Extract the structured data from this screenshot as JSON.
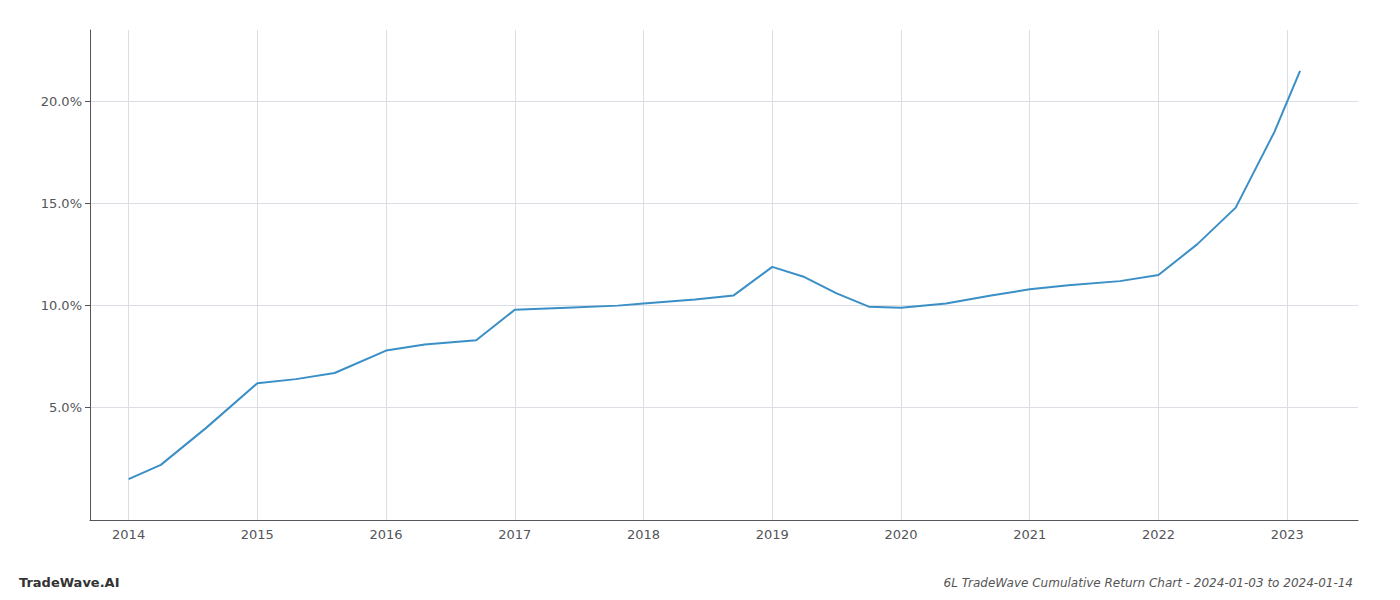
{
  "chart_data": {
    "type": "line",
    "title": "6L TradeWave Cumulative Return Chart - 2024-01-03 to 2024-01-14",
    "annotations": [
      "TradeWave.AI"
    ],
    "x": [
      2014.0,
      2014.25,
      2014.6,
      2015.0,
      2015.3,
      2015.6,
      2016.0,
      2016.3,
      2016.7,
      2017.0,
      2017.4,
      2017.8,
      2018.0,
      2018.4,
      2018.7,
      2019.0,
      2019.25,
      2019.5,
      2019.75,
      2020.0,
      2020.35,
      2020.7,
      2021.0,
      2021.3,
      2021.7,
      2022.0,
      2022.3,
      2022.6,
      2022.9,
      2023.1
    ],
    "values": [
      1.5,
      2.2,
      4.0,
      6.2,
      6.4,
      6.7,
      7.8,
      8.1,
      8.3,
      9.8,
      9.9,
      10.0,
      10.1,
      10.3,
      10.5,
      11.9,
      11.4,
      10.6,
      9.95,
      9.9,
      10.1,
      10.5,
      10.8,
      11.0,
      11.2,
      11.5,
      13.0,
      14.8,
      18.5,
      21.5
    ],
    "color": "#3a8fc7",
    "xlim": [
      2013.7,
      2023.55
    ],
    "ylim": [
      -0.5,
      23.5
    ],
    "xticks": [
      2014,
      2015,
      2016,
      2017,
      2018,
      2019,
      2020,
      2021,
      2022,
      2023
    ],
    "yticks": [
      {
        "value": 5.0,
        "label": "5.0%"
      },
      {
        "value": 10.0,
        "label": "10.0%"
      },
      {
        "value": 15.0,
        "label": "15.0%"
      },
      {
        "value": 20.0,
        "label": "20.0%"
      }
    ],
    "grid": true
  }
}
